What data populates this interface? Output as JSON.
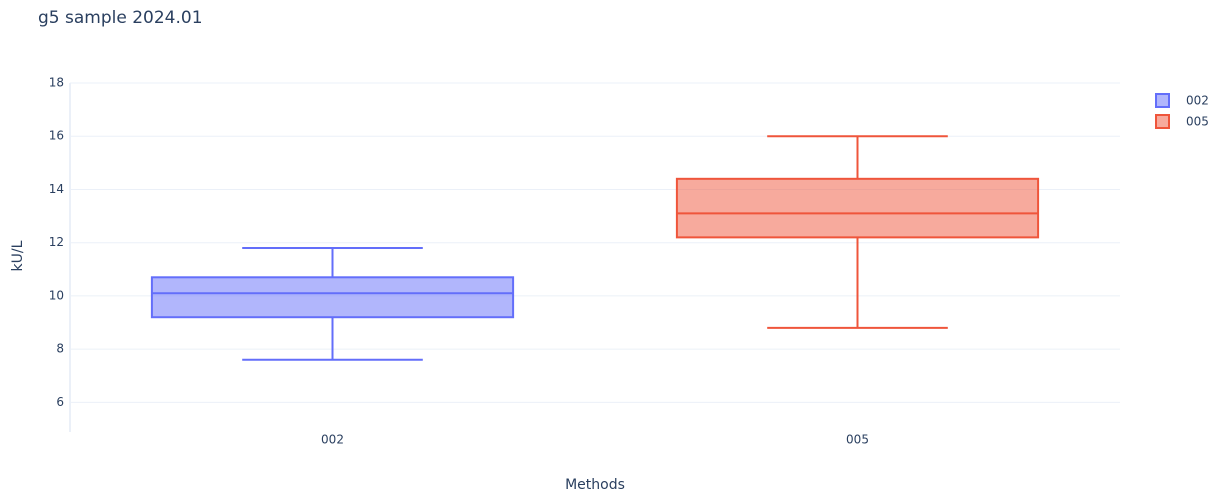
{
  "chart_data": {
    "type": "box",
    "title": "g5 sample 2024.01",
    "x_label": "Methods",
    "y_label": "kU/L",
    "categories": [
      "002",
      "005"
    ],
    "series": [
      {
        "name": "002",
        "color": "#636efa",
        "min": 7.6,
        "q1": 9.2,
        "median": 10.1,
        "q3": 10.7,
        "max": 11.8
      },
      {
        "name": "005",
        "color": "#ef553b",
        "min": 8.8,
        "q1": 12.2,
        "median": 13.1,
        "q3": 14.4,
        "max": 16
      }
    ],
    "ylim": [
      5,
      18
    ],
    "yticks": [
      6,
      8,
      10,
      12,
      14,
      16,
      18
    ],
    "grid": true,
    "legend": "top-right"
  }
}
